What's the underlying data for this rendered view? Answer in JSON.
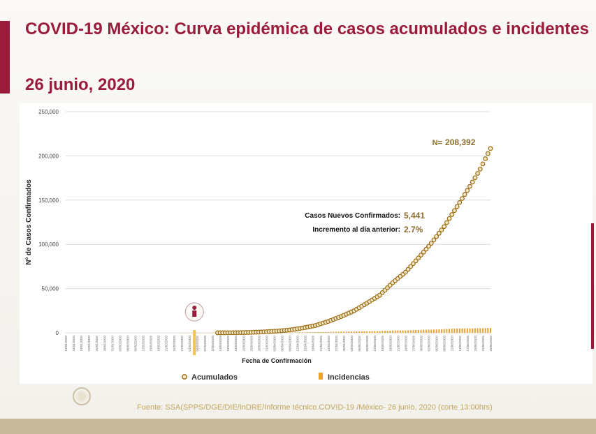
{
  "slide": {
    "title": "COVID-19 México: Curva epidémica de casos acumulados e incidentes",
    "date": "26 junio, 2020",
    "footer": "Fuente: SSA(SPPS/DGE/DIE/InDRE/Informe técnico.COVID-19 /México- 26 junio, 2020 (corte 13:00hrs)"
  },
  "colors": {
    "accent": "#9b1b3a",
    "acumulados": "#9a6b12",
    "incidencias": "#e8a232",
    "annotation": "#8a6d2b",
    "footer": "#c4a55a"
  },
  "chart_data": {
    "type": "line",
    "title": "",
    "xlabel": "Fecha de Confirmación",
    "ylabel": "Nº de Casos Confirmados",
    "ylim": [
      0,
      250000
    ],
    "yticks": [
      0,
      50000,
      100000,
      150000,
      200000,
      250000
    ],
    "ytick_labels": [
      "0",
      "50,000",
      "100,000",
      "150,000",
      "200,000",
      "250,000"
    ],
    "grid": true,
    "legend_position": "bottom",
    "x": [
      "2020-02-27",
      "2020-03-01",
      "2020-03-05",
      "2020-03-10",
      "2020-03-15",
      "2020-03-20",
      "2020-03-25",
      "2020-03-30",
      "2020-04-04",
      "2020-04-09",
      "2020-04-14",
      "2020-04-19",
      "2020-04-24",
      "2020-04-29",
      "2020-05-04",
      "2020-05-09",
      "2020-05-14",
      "2020-05-19",
      "2020-05-24",
      "2020-05-29",
      "2020-06-03",
      "2020-06-08",
      "2020-06-13",
      "2020-06-18",
      "2020-06-22",
      "2020-06-26"
    ],
    "series": [
      {
        "name": "Acumulados",
        "marker": "circle",
        "values": [
          1,
          5,
          12,
          20,
          50,
          200,
          475,
          1100,
          1900,
          3200,
          5400,
          8300,
          12900,
          18500,
          24900,
          33500,
          42600,
          56600,
          68600,
          84600,
          101200,
          120100,
          142700,
          165500,
          185100,
          208392
        ]
      },
      {
        "name": "Incidencias",
        "marker": "bar",
        "values": [
          1,
          2,
          3,
          4,
          30,
          60,
          100,
          140,
          250,
          300,
          450,
          650,
          900,
          1300,
          1500,
          1800,
          2000,
          2600,
          2700,
          3300,
          3600,
          4200,
          4900,
          5000,
          5200,
          5441
        ]
      }
    ],
    "annotations": {
      "total": {
        "label": "N=",
        "value": "208,392"
      },
      "new_cases": {
        "label": "Casos Nuevos Confirmados:",
        "value": "5,441"
      },
      "increase": {
        "label": "Incremento al día anterior:",
        "value": "2.7%"
      }
    }
  }
}
